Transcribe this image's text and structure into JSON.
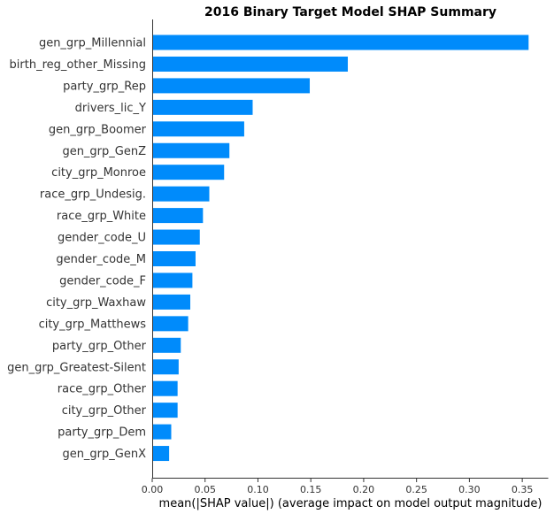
{
  "chart_data": {
    "type": "bar",
    "orientation": "horizontal",
    "title": "2016 Binary Target Model SHAP Summary",
    "xlabel": "mean(|SHAP value|) (average impact on model output magnitude)",
    "ylabel": "",
    "xlim": [
      0,
      0.375
    ],
    "xticks": [
      "0.00",
      "0.05",
      "0.10",
      "0.15",
      "0.20",
      "0.25",
      "0.30",
      "0.35"
    ],
    "bar_color": "#008bfb",
    "grid": false,
    "categories": [
      "gen_grp_Millennial",
      "birth_reg_other_Missing",
      "party_grp_Rep",
      "drivers_lic_Y",
      "gen_grp_Boomer",
      "gen_grp_GenZ",
      "city_grp_Monroe",
      "race_grp_Undesig.",
      "race_grp_White",
      "gender_code_U",
      "gender_code_M",
      "gender_code_F",
      "city_grp_Waxhaw",
      "city_grp_Matthews",
      "party_grp_Other",
      "gen_grp_Greatest-Silent",
      "race_grp_Other",
      "city_grp_Other",
      "party_grp_Dem",
      "gen_grp_GenX"
    ],
    "values": [
      0.356,
      0.185,
      0.149,
      0.095,
      0.087,
      0.073,
      0.068,
      0.054,
      0.048,
      0.045,
      0.041,
      0.038,
      0.036,
      0.034,
      0.027,
      0.025,
      0.024,
      0.024,
      0.018,
      0.016
    ]
  }
}
